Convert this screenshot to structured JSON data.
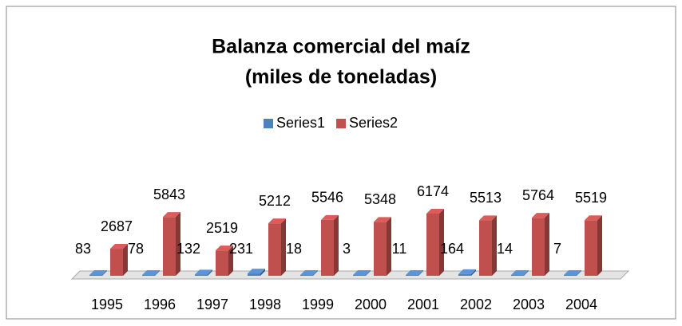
{
  "chart_data": {
    "type": "bar",
    "title": "Balanza comercial del maíz",
    "subtitle": "(miles de toneladas)",
    "categories": [
      "1995",
      "1996",
      "1997",
      "1998",
      "1999",
      "2000",
      "2001",
      "2002",
      "2003",
      "2004"
    ],
    "series": [
      {
        "name": "Series1",
        "color": "#4f81bd",
        "values": [
          83,
          78,
          132,
          231,
          18,
          3,
          11,
          164,
          14,
          7
        ]
      },
      {
        "name": "Series2",
        "color": "#c0504d",
        "values": [
          2687,
          5843,
          2519,
          5212,
          5546,
          5348,
          6174,
          5513,
          5764,
          5519
        ]
      }
    ],
    "legend": "top"
  }
}
